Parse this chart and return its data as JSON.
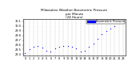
{
  "title": "Milwaukee Weather Barometric Pressure\nper Minute\n(24 Hours)",
  "title_fontsize": 3.0,
  "bg_color": "#ffffff",
  "plot_bg_color": "#ffffff",
  "dot_color": "#0000ff",
  "grid_color": "#999999",
  "pressure_data": [
    [
      0,
      29.42
    ],
    [
      1,
      29.5
    ],
    [
      2,
      29.55
    ],
    [
      3,
      29.58
    ],
    [
      4,
      29.54
    ],
    [
      5,
      29.48
    ],
    [
      6,
      29.46
    ],
    [
      7,
      29.52
    ],
    [
      8,
      29.56
    ],
    [
      9,
      29.58
    ],
    [
      10,
      29.57
    ],
    [
      11,
      29.55
    ],
    [
      12,
      29.53
    ],
    [
      13,
      29.46
    ],
    [
      14,
      29.48
    ],
    [
      15,
      29.55
    ],
    [
      16,
      29.62
    ],
    [
      17,
      29.72
    ],
    [
      18,
      29.82
    ],
    [
      19,
      29.9
    ],
    [
      20,
      29.95
    ],
    [
      21,
      30.0
    ],
    [
      22,
      30.06
    ],
    [
      23,
      30.1
    ]
  ],
  "ylim": [
    29.38,
    30.14
  ],
  "yticks": [
    29.4,
    29.5,
    29.6,
    29.7,
    29.8,
    29.9,
    30.0,
    30.1
  ],
  "ytick_labels": [
    "29.4",
    "29.5",
    "29.6",
    "29.7",
    "29.8",
    "29.9",
    "30.0",
    "30.1"
  ],
  "xtick_labels": [
    "0",
    "1",
    "2",
    "3",
    "4",
    "5",
    "6",
    "7",
    "8",
    "9",
    "10",
    "11",
    "12",
    "13",
    "14",
    "15",
    "16",
    "17",
    "18",
    "19",
    "20",
    "21",
    "22",
    "23"
  ],
  "legend_label": "Barometric Pressure",
  "marker_size": 0.8,
  "tick_fontsize": 2.5,
  "legend_fontsize": 2.5,
  "figsize": [
    1.6,
    0.87
  ],
  "dpi": 100
}
